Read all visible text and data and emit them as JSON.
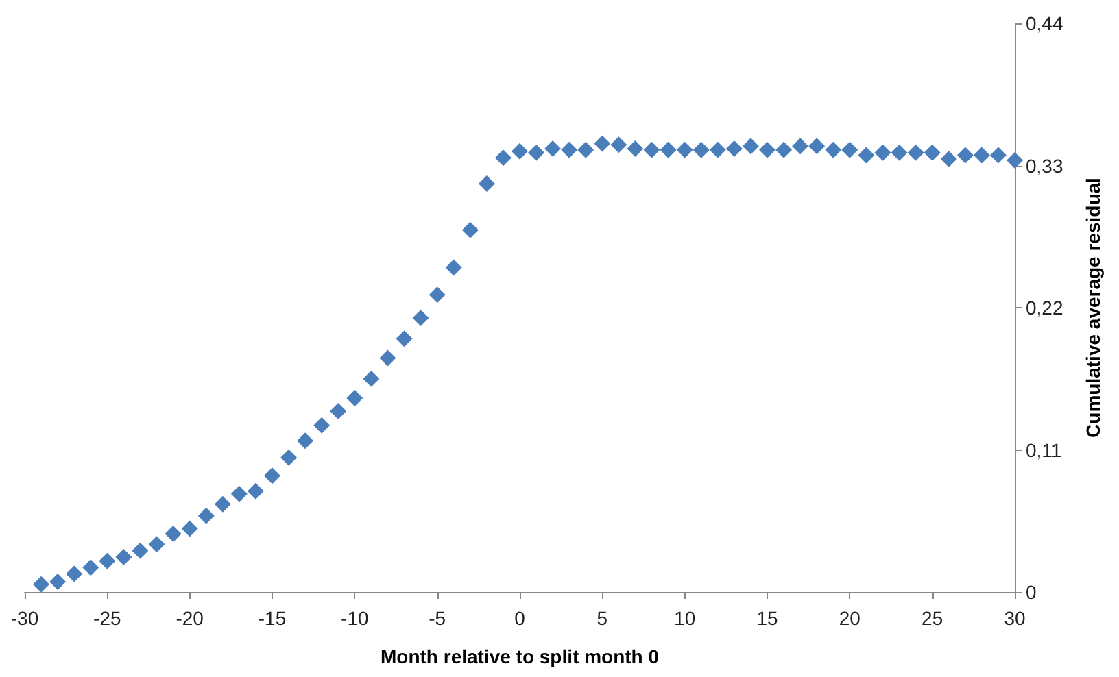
{
  "chart_data": {
    "type": "scatter",
    "xlabel": "Month relative to split month 0",
    "ylabel": "Cumulative average residual",
    "x": [
      -29,
      -28,
      -27,
      -26,
      -25,
      -24,
      -23,
      -22,
      -21,
      -20,
      -19,
      -18,
      -17,
      -16,
      -15,
      -14,
      -13,
      -12,
      -11,
      -10,
      -9,
      -8,
      -7,
      -6,
      -5,
      -4,
      -3,
      -2,
      -1,
      0,
      1,
      2,
      3,
      4,
      5,
      6,
      7,
      8,
      9,
      10,
      11,
      12,
      13,
      14,
      15,
      16,
      17,
      18,
      19,
      20,
      21,
      22,
      23,
      24,
      25,
      26,
      27,
      28,
      29,
      30
    ],
    "series": [
      {
        "color": "#4a7ebb",
        "values": [
          0.006,
          0.008,
          0.014,
          0.019,
          0.024,
          0.027,
          0.032,
          0.037,
          0.045,
          0.049,
          0.059,
          0.068,
          0.076,
          0.078,
          0.09,
          0.104,
          0.117,
          0.129,
          0.14,
          0.15,
          0.165,
          0.181,
          0.196,
          0.212,
          0.23,
          0.251,
          0.28,
          0.316,
          0.336,
          0.341,
          0.34,
          0.343,
          0.342,
          0.342,
          0.347,
          0.346,
          0.343,
          0.342,
          0.342,
          0.342,
          0.342,
          0.342,
          0.343,
          0.345,
          0.342,
          0.342,
          0.345,
          0.345,
          0.342,
          0.342,
          0.338,
          0.34,
          0.34,
          0.34,
          0.34,
          0.335,
          0.338,
          0.338,
          0.338,
          0.334
        ]
      }
    ],
    "xlim": [
      -30,
      30
    ],
    "xticks": [
      -30,
      -25,
      -20,
      -15,
      -10,
      -5,
      0,
      5,
      10,
      15,
      20,
      25,
      30
    ],
    "ylim": [
      0,
      0.44
    ],
    "yticks": [
      0,
      {
        "value": 0.11,
        "label": "0,11"
      },
      {
        "value": 0.22,
        "label": "0,22"
      },
      {
        "value": 0.33,
        "label": "0,33"
      },
      {
        "value": 0.44,
        "label": "0,44"
      }
    ],
    "grid": false,
    "marker": "diamond"
  }
}
